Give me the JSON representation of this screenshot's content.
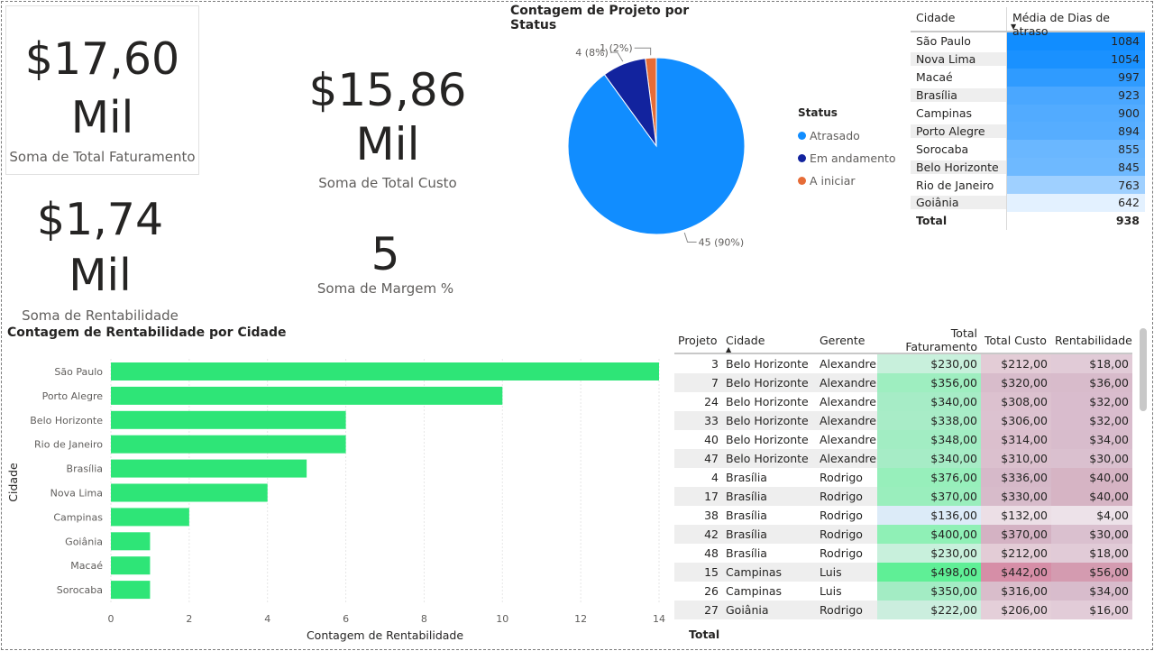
{
  "kpis": {
    "faturamento": {
      "line1": "$17,60",
      "line2": "Mil",
      "label": "Soma de Total Faturamento"
    },
    "custo": {
      "value": "$15,86 Mil",
      "label": "Soma de Total Custo"
    },
    "rentabilidade": {
      "line1": "$1,74",
      "line2": "Mil",
      "label": "Soma de Rentabilidade"
    },
    "margem": {
      "value": "5",
      "label": "Soma de Margem %"
    }
  },
  "pie_chart": {
    "title": "Contagem de Projeto por Status",
    "legend_title": "Status",
    "labels": [
      "45 (90%)",
      "4 (8%)",
      "1 (2%)"
    ]
  },
  "city_table": {
    "col_city": "Cidade",
    "col_days": "Média de Dias de atraso",
    "rows": [
      {
        "city": "São Paulo",
        "days": "1084"
      },
      {
        "city": "Nova Lima",
        "days": "1054"
      },
      {
        "city": "Macaé",
        "days": "997"
      },
      {
        "city": "Brasília",
        "days": "923"
      },
      {
        "city": "Campinas",
        "days": "900"
      },
      {
        "city": "Porto Alegre",
        "days": "894"
      },
      {
        "city": "Sorocaba",
        "days": "855"
      },
      {
        "city": "Belo Horizonte",
        "days": "845"
      },
      {
        "city": "Rio de Janeiro",
        "days": "763"
      },
      {
        "city": "Goiânia",
        "days": "642"
      }
    ],
    "total_label": "Total",
    "total_value": "938",
    "colors": [
      "#118dff",
      "#1a91ff",
      "#2f9bff",
      "#4aa7ff",
      "#52abff",
      "#56adff",
      "#6ab7ff",
      "#6eb9ff",
      "#9fd0ff",
      "#e3f1ff"
    ]
  },
  "project_table": {
    "headers": [
      "Projeto",
      "Cidade",
      "Gerente",
      "Total Faturamento",
      "Total Custo",
      "Rentabilidade"
    ],
    "rows": [
      {
        "p": "3",
        "c": "Belo Horizonte",
        "g": "Alexandre",
        "f": "$230,00",
        "u": "$212,00",
        "r": "$18,00"
      },
      {
        "p": "7",
        "c": "Belo Horizonte",
        "g": "Alexandre",
        "f": "$356,00",
        "u": "$320,00",
        "r": "$36,00"
      },
      {
        "p": "24",
        "c": "Belo Horizonte",
        "g": "Alexandre",
        "f": "$340,00",
        "u": "$308,00",
        "r": "$32,00"
      },
      {
        "p": "33",
        "c": "Belo Horizonte",
        "g": "Alexandre",
        "f": "$338,00",
        "u": "$306,00",
        "r": "$32,00"
      },
      {
        "p": "40",
        "c": "Belo Horizonte",
        "g": "Alexandre",
        "f": "$348,00",
        "u": "$314,00",
        "r": "$34,00"
      },
      {
        "p": "47",
        "c": "Belo Horizonte",
        "g": "Alexandre",
        "f": "$340,00",
        "u": "$310,00",
        "r": "$30,00"
      },
      {
        "p": "4",
        "c": "Brasília",
        "g": "Rodrigo",
        "f": "$376,00",
        "u": "$336,00",
        "r": "$40,00"
      },
      {
        "p": "17",
        "c": "Brasília",
        "g": "Rodrigo",
        "f": "$370,00",
        "u": "$330,00",
        "r": "$40,00"
      },
      {
        "p": "38",
        "c": "Brasília",
        "g": "Rodrigo",
        "f": "$136,00",
        "u": "$132,00",
        "r": "$4,00"
      },
      {
        "p": "42",
        "c": "Brasília",
        "g": "Rodrigo",
        "f": "$400,00",
        "u": "$370,00",
        "r": "$30,00"
      },
      {
        "p": "48",
        "c": "Brasília",
        "g": "Rodrigo",
        "f": "$230,00",
        "u": "$212,00",
        "r": "$18,00"
      },
      {
        "p": "15",
        "c": "Campinas",
        "g": "Luis",
        "f": "$498,00",
        "u": "$442,00",
        "r": "$56,00"
      },
      {
        "p": "26",
        "c": "Campinas",
        "g": "Luis",
        "f": "$350,00",
        "u": "$316,00",
        "r": "$34,00"
      },
      {
        "p": "27",
        "c": "Goiânia",
        "g": "Rodrigo",
        "f": "$222,00",
        "u": "$206,00",
        "r": "$16,00"
      }
    ],
    "fat_colors": [
      "#c8f0dc",
      "#9eeec0",
      "#a6ecc6",
      "#a8ecc7",
      "#a2edc3",
      "#a6ecc6",
      "#97efbb",
      "#9aeebd",
      "#dcebf8",
      "#8ff0b6",
      "#c8f0dc",
      "#5fef96",
      "#a3ecc4",
      "#cbeede"
    ],
    "cus_colors": [
      "#e3ccd6",
      "#d8bccb",
      "#dcc1cf",
      "#dcc2d0",
      "#dbbfcd",
      "#dbc0ce",
      "#d6b9c9",
      "#d7bbca",
      "#ecdfe6",
      "#d4b2c3",
      "#e3ccd6",
      "#d68ea7",
      "#d9bdcb",
      "#e4cfd9"
    ],
    "ren_colors": [
      "#e1cbd7",
      "#d8bbcb",
      "#d9bccd",
      "#d9bccd",
      "#d8bccc",
      "#dac0cf",
      "#d6b4c4",
      "#d6b4c4",
      "#ede2e9",
      "#dac0cf",
      "#e1cbd7",
      "#d49bb0",
      "#d8bccc",
      "#e2ccd8"
    ],
    "total_label": "Total"
  },
  "status_legend": [
    {
      "label": "Atrasado",
      "color": "#118dff"
    },
    {
      "label": "Em andamento",
      "color": "#12239e"
    },
    {
      "label": "A iniciar",
      "color": "#e66c37"
    }
  ],
  "chart_data": [
    {
      "type": "pie",
      "title": "Contagem de Projeto por Status",
      "categories": [
        "Atrasado",
        "Em andamento",
        "A iniciar"
      ],
      "values": [
        45,
        4,
        1
      ],
      "percent_labels": [
        "90%",
        "8%",
        "2%"
      ],
      "legend": "right"
    },
    {
      "type": "bar",
      "orientation": "horizontal",
      "title": "Contagem de Rentabilidade por Cidade",
      "xlabel": "Contagem de Rentabilidade",
      "ylabel": "Cidade",
      "categories": [
        "São Paulo",
        "Porto Alegre",
        "Belo Horizonte",
        "Rio de Janeiro",
        "Brasília",
        "Nova Lima",
        "Campinas",
        "Goiânia",
        "Macaé",
        "Sorocaba"
      ],
      "values": [
        14,
        10,
        6,
        6,
        5,
        4,
        2,
        1,
        1,
        1
      ],
      "xlim": [
        0,
        14
      ],
      "xticks": [
        0,
        2,
        4,
        6,
        8,
        10,
        12,
        14
      ],
      "grid": true,
      "color": "#2ee577"
    }
  ]
}
